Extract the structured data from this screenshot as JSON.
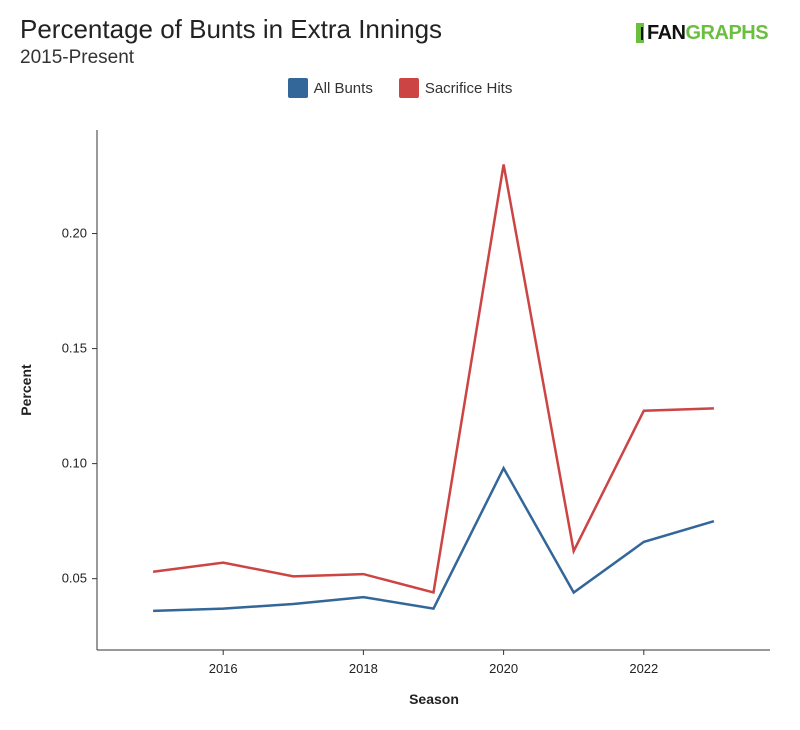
{
  "header": {
    "title": "Percentage of Bunts in Extra Innings",
    "subtitle": "2015-Present",
    "brand_left": "FAN",
    "brand_right": "GRAPHS"
  },
  "chart_data": {
    "type": "line",
    "title": "Percentage of Bunts in Extra Innings",
    "subtitle": "2015-Present",
    "xlabel": "Season",
    "ylabel": "Percent",
    "x": [
      2015,
      2016,
      2017,
      2018,
      2019,
      2020,
      2021,
      2022,
      2023
    ],
    "xlim": [
      2014.2,
      2023.8
    ],
    "ylim": [
      0.019,
      0.245
    ],
    "xticks": [
      2016,
      2018,
      2020,
      2022
    ],
    "yticks": [
      0.05,
      0.1,
      0.15,
      0.2
    ],
    "ytick_labels": [
      "0.05",
      "0.10",
      "0.15",
      "0.20"
    ],
    "grid": false,
    "legend_position": "top-center",
    "series": [
      {
        "name": "All Bunts",
        "color": "#336699",
        "values": [
          0.036,
          0.037,
          0.039,
          0.042,
          0.037,
          0.098,
          0.044,
          0.066,
          0.075
        ]
      },
      {
        "name": "Sacrifice Hits",
        "color": "#cc4444",
        "values": [
          0.053,
          0.057,
          0.051,
          0.052,
          0.044,
          0.23,
          0.062,
          0.123,
          0.124
        ]
      }
    ]
  }
}
